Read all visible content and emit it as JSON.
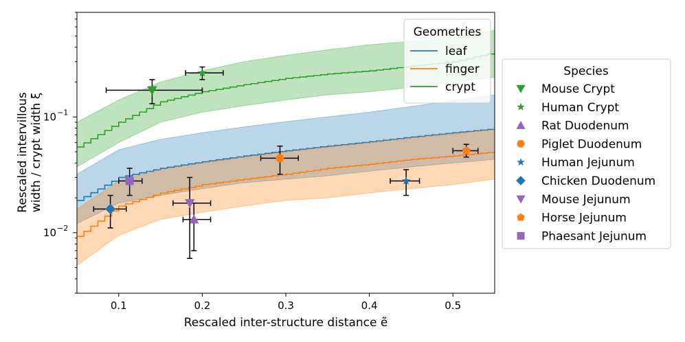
{
  "chart_data": {
    "type": "scatter",
    "xlabel": "Rescaled inter-structure distance ẽ",
    "ylabel_line1": "Rescaled intervillous",
    "ylabel_line2": "width / crypt width ξ",
    "xlim": [
      0.05,
      0.55
    ],
    "ylim": [
      0.003,
      0.8
    ],
    "yscale": "log",
    "x_ticks": [
      {
        "value": 0.1,
        "label": "0.1"
      },
      {
        "value": 0.2,
        "label": "0.2"
      },
      {
        "value": 0.3,
        "label": "0.3"
      },
      {
        "value": 0.4,
        "label": "0.4"
      },
      {
        "value": 0.5,
        "label": "0.5"
      }
    ],
    "y_ticks": [
      {
        "value": 0.01,
        "label_base": "10",
        "label_exp": "−2"
      },
      {
        "value": 0.1,
        "label_base": "10",
        "label_exp": "−1"
      }
    ],
    "geometries_legend": {
      "title": "Geometries",
      "placement": "top-right (inside)",
      "items": [
        {
          "name": "leaf",
          "color": "#1f77b4"
        },
        {
          "name": "finger",
          "color": "#ff7f0e"
        },
        {
          "name": "crypt",
          "color": "#2ca02c"
        }
      ]
    },
    "geometry_bands": [
      {
        "name": "crypt",
        "color": "#2ca02c",
        "x": [
          0.05,
          0.1,
          0.15,
          0.2,
          0.25,
          0.3,
          0.35,
          0.4,
          0.45,
          0.5,
          0.55
        ],
        "mid": [
          0.055,
          0.09,
          0.135,
          0.165,
          0.19,
          0.215,
          0.235,
          0.25,
          0.275,
          0.3,
          0.36
        ],
        "lower": [
          0.037,
          0.06,
          0.09,
          0.11,
          0.125,
          0.14,
          0.155,
          0.165,
          0.18,
          0.2,
          0.22
        ],
        "upper": [
          0.09,
          0.14,
          0.2,
          0.25,
          0.3,
          0.34,
          0.38,
          0.42,
          0.45,
          0.48,
          0.56
        ]
      },
      {
        "name": "leaf",
        "color": "#1f77b4",
        "x": [
          0.05,
          0.1,
          0.15,
          0.2,
          0.25,
          0.3,
          0.35,
          0.4,
          0.45,
          0.5,
          0.55
        ],
        "mid": [
          0.019,
          0.03,
          0.036,
          0.041,
          0.046,
          0.051,
          0.056,
          0.061,
          0.067,
          0.073,
          0.079
        ],
        "lower": [
          0.012,
          0.018,
          0.021,
          0.024,
          0.027,
          0.029,
          0.031,
          0.034,
          0.037,
          0.04,
          0.043
        ],
        "upper": [
          0.032,
          0.052,
          0.064,
          0.073,
          0.082,
          0.091,
          0.1,
          0.11,
          0.123,
          0.138,
          0.155
        ]
      },
      {
        "name": "finger",
        "color": "#ff7f0e",
        "x": [
          0.05,
          0.1,
          0.15,
          0.2,
          0.25,
          0.3,
          0.35,
          0.4,
          0.45,
          0.5,
          0.55
        ],
        "mid": [
          0.0093,
          0.017,
          0.022,
          0.026,
          0.029,
          0.032,
          0.036,
          0.039,
          0.043,
          0.046,
          0.05
        ],
        "lower": [
          0.0052,
          0.0095,
          0.013,
          0.015,
          0.017,
          0.019,
          0.02,
          0.022,
          0.024,
          0.026,
          0.029
        ],
        "upper": [
          0.016,
          0.028,
          0.035,
          0.04,
          0.045,
          0.05,
          0.055,
          0.06,
          0.066,
          0.072,
          0.078
        ]
      }
    ],
    "species_legend": {
      "title": "Species",
      "placement": "outside-right"
    },
    "species": [
      {
        "name": "Mouse Crypt",
        "marker": "triangle-down",
        "color": "#2ca02c",
        "x": 0.14,
        "y": 0.17,
        "xerr": [
          0.085,
          0.2
        ],
        "yerr": [
          0.13,
          0.21
        ]
      },
      {
        "name": "Human Crypt",
        "marker": "star",
        "color": "#2ca02c",
        "x": 0.2,
        "y": 0.24,
        "xerr": [
          0.18,
          0.225
        ],
        "yerr": [
          0.21,
          0.27
        ]
      },
      {
        "name": "Rat Duodenum",
        "marker": "triangle-up",
        "color": "#9467bd",
        "x": 0.19,
        "y": 0.013,
        "xerr": [
          0.177,
          0.21
        ],
        "yerr": [
          0.007,
          0.018
        ]
      },
      {
        "name": "Piglet Duodenum",
        "marker": "circle",
        "color": "#ff7f0e",
        "x": 0.293,
        "y": 0.044,
        "xerr": [
          0.27,
          0.315
        ],
        "yerr": [
          0.032,
          0.056
        ]
      },
      {
        "name": "Human Jejunum",
        "marker": "star",
        "color": "#1f77b4",
        "x": 0.444,
        "y": 0.028,
        "xerr": [
          0.425,
          0.46
        ],
        "yerr": [
          0.021,
          0.035
        ]
      },
      {
        "name": "Chicken Duodenum",
        "marker": "diamond",
        "color": "#1f77b4",
        "x": 0.09,
        "y": 0.016,
        "xerr": [
          0.07,
          0.109
        ],
        "yerr": [
          0.011,
          0.021
        ]
      },
      {
        "name": "Mouse Jejunum",
        "marker": "triangle-down",
        "color": "#9467bd",
        "x": 0.185,
        "y": 0.018,
        "xerr": [
          0.165,
          0.21
        ],
        "yerr": [
          0.006,
          0.03
        ]
      },
      {
        "name": "Horse Jejunum",
        "marker": "pentagon",
        "color": "#ff7f0e",
        "x": 0.516,
        "y": 0.051,
        "xerr": [
          0.5,
          0.53
        ],
        "yerr": [
          0.045,
          0.058
        ]
      },
      {
        "name": "Phaesant Jejunum",
        "marker": "square",
        "color": "#9467bd",
        "x": 0.113,
        "y": 0.028,
        "xerr": [
          0.1,
          0.128
        ],
        "yerr": [
          0.021,
          0.036
        ]
      }
    ]
  }
}
